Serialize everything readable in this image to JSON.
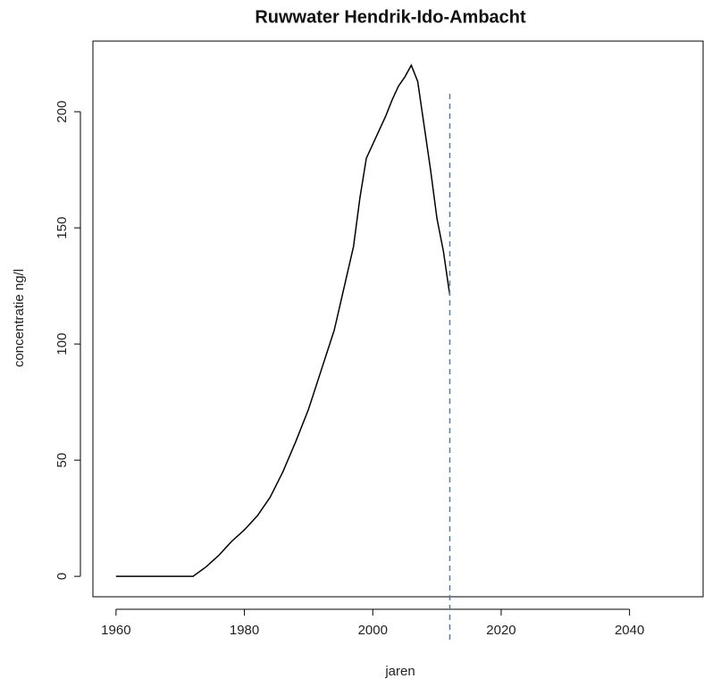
{
  "chart_data": {
    "type": "line",
    "title": "Ruwwater Hendrik-Ido-Ambacht",
    "x_label": "jaren",
    "y_label": "concentratie ng/l",
    "x": [
      1960,
      1962,
      1964,
      1966,
      1968,
      1970,
      1972,
      1974,
      1976,
      1978,
      1980,
      1982,
      1984,
      1986,
      1988,
      1990,
      1992,
      1994,
      1995,
      1996,
      1997,
      1998,
      1999,
      2000,
      2001,
      2002,
      2003,
      2004,
      2005,
      2006,
      2007,
      2008,
      2009,
      2010,
      2011,
      2012
    ],
    "series": [
      {
        "name": "concentratie",
        "color": "#000000",
        "values": [
          0,
          0,
          0,
          0,
          0,
          0,
          0,
          4,
          9,
          15,
          20,
          26,
          34,
          45,
          58,
          72,
          89,
          106,
          118,
          130,
          142,
          163,
          180,
          186,
          192,
          198,
          205,
          211,
          215,
          220,
          213,
          194,
          175,
          154,
          140,
          121
        ]
      }
    ],
    "vline": {
      "x": 2012,
      "color": "#4a7ebb"
    },
    "xlim": [
      1956.4,
      2051.6
    ],
    "ylim": [
      -8.8,
      230.4
    ],
    "xticks": [
      1960,
      1980,
      2000,
      2020,
      2040
    ],
    "yticks": [
      0,
      50,
      100,
      150,
      200
    ]
  }
}
